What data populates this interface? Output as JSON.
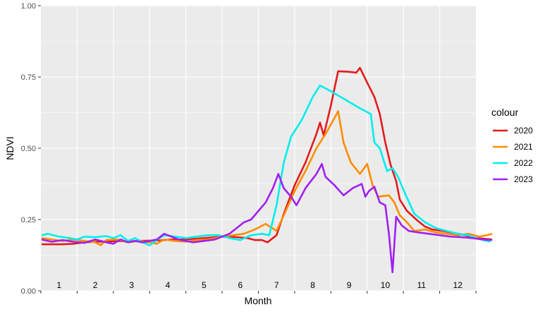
{
  "chart_data": {
    "type": "line",
    "xlabel": "Month",
    "ylabel": "NDVI",
    "ylim": [
      0,
      1
    ],
    "xlim": [
      0,
      12
    ],
    "y_ticks": [
      0,
      0.25,
      0.5,
      0.75,
      1
    ],
    "y_tick_labels": [
      "0.00",
      "0.25",
      "0.50",
      "0.75",
      "1.00"
    ],
    "month_labels": [
      "1",
      "2",
      "3",
      "4",
      "5",
      "6",
      "7",
      "8",
      "9",
      "10",
      "11",
      "12"
    ],
    "legend_title": "colour",
    "legend_position": "right",
    "grid": true,
    "background": "#ebebeb",
    "series": [
      {
        "name": "2020",
        "color": "#e41a1c",
        "points": [
          [
            0.02,
            0.163
          ],
          [
            0.3,
            0.163
          ],
          [
            0.6,
            0.163
          ],
          [
            0.9,
            0.165
          ],
          [
            1.2,
            0.17
          ],
          [
            1.5,
            0.172
          ],
          [
            1.8,
            0.172
          ],
          [
            2.1,
            0.175
          ],
          [
            2.4,
            0.173
          ],
          [
            2.7,
            0.175
          ],
          [
            3.0,
            0.176
          ],
          [
            3.3,
            0.177
          ],
          [
            3.6,
            0.18
          ],
          [
            3.9,
            0.18
          ],
          [
            4.2,
            0.182
          ],
          [
            4.5,
            0.185
          ],
          [
            4.8,
            0.188
          ],
          [
            5.1,
            0.19
          ],
          [
            5.4,
            0.188
          ],
          [
            5.7,
            0.185
          ],
          [
            5.9,
            0.178
          ],
          [
            6.1,
            0.178
          ],
          [
            6.25,
            0.17
          ],
          [
            6.5,
            0.195
          ],
          [
            6.7,
            0.27
          ],
          [
            7.0,
            0.37
          ],
          [
            7.3,
            0.45
          ],
          [
            7.6,
            0.55
          ],
          [
            7.7,
            0.59
          ],
          [
            7.8,
            0.545
          ],
          [
            8.0,
            0.65
          ],
          [
            8.2,
            0.77
          ],
          [
            8.5,
            0.768
          ],
          [
            8.7,
            0.765
          ],
          [
            8.8,
            0.782
          ],
          [
            9.0,
            0.73
          ],
          [
            9.2,
            0.68
          ],
          [
            9.35,
            0.62
          ],
          [
            9.5,
            0.52
          ],
          [
            9.65,
            0.44
          ],
          [
            9.8,
            0.385
          ],
          [
            9.9,
            0.32
          ],
          [
            10.1,
            0.28
          ],
          [
            10.4,
            0.245
          ],
          [
            10.6,
            0.225
          ],
          [
            10.8,
            0.215
          ],
          [
            11.1,
            0.21
          ],
          [
            11.3,
            0.205
          ],
          [
            11.6,
            0.198
          ],
          [
            11.8,
            0.192
          ],
          [
            12.0,
            0.185
          ],
          [
            12.3,
            0.182
          ],
          [
            12.45,
            0.18
          ]
        ]
      },
      {
        "name": "2021",
        "color": "#ff8c00",
        "points": [
          [
            0.02,
            0.185
          ],
          [
            0.3,
            0.18
          ],
          [
            0.6,
            0.175
          ],
          [
            0.9,
            0.18
          ],
          [
            1.2,
            0.175
          ],
          [
            1.5,
            0.17
          ],
          [
            1.65,
            0.16
          ],
          [
            1.8,
            0.178
          ],
          [
            2.1,
            0.18
          ],
          [
            2.4,
            0.17
          ],
          [
            2.7,
            0.175
          ],
          [
            3.0,
            0.17
          ],
          [
            3.2,
            0.165
          ],
          [
            3.4,
            0.18
          ],
          [
            3.7,
            0.175
          ],
          [
            4.0,
            0.172
          ],
          [
            4.3,
            0.178
          ],
          [
            4.6,
            0.18
          ],
          [
            5.0,
            0.19
          ],
          [
            5.3,
            0.195
          ],
          [
            5.6,
            0.2
          ],
          [
            5.9,
            0.215
          ],
          [
            6.2,
            0.235
          ],
          [
            6.5,
            0.21
          ],
          [
            6.7,
            0.265
          ],
          [
            7.0,
            0.35
          ],
          [
            7.3,
            0.42
          ],
          [
            7.6,
            0.5
          ],
          [
            7.9,
            0.56
          ],
          [
            8.2,
            0.63
          ],
          [
            8.35,
            0.52
          ],
          [
            8.55,
            0.45
          ],
          [
            8.8,
            0.41
          ],
          [
            9.0,
            0.445
          ],
          [
            9.15,
            0.37
          ],
          [
            9.3,
            0.33
          ],
          [
            9.6,
            0.335
          ],
          [
            9.75,
            0.31
          ],
          [
            9.9,
            0.265
          ],
          [
            10.1,
            0.24
          ],
          [
            10.3,
            0.21
          ],
          [
            10.6,
            0.215
          ],
          [
            10.9,
            0.205
          ],
          [
            11.2,
            0.2
          ],
          [
            11.5,
            0.195
          ],
          [
            11.8,
            0.2
          ],
          [
            12.1,
            0.19
          ],
          [
            12.3,
            0.195
          ],
          [
            12.45,
            0.2
          ]
        ]
      },
      {
        "name": "2022",
        "color": "#00eeee",
        "points": [
          [
            0.02,
            0.195
          ],
          [
            0.2,
            0.2
          ],
          [
            0.5,
            0.19
          ],
          [
            0.8,
            0.185
          ],
          [
            1.0,
            0.18
          ],
          [
            1.2,
            0.19
          ],
          [
            1.5,
            0.188
          ],
          [
            1.8,
            0.192
          ],
          [
            2.0,
            0.185
          ],
          [
            2.2,
            0.195
          ],
          [
            2.4,
            0.175
          ],
          [
            2.6,
            0.185
          ],
          [
            2.8,
            0.17
          ],
          [
            3.0,
            0.16
          ],
          [
            3.2,
            0.178
          ],
          [
            3.4,
            0.195
          ],
          [
            3.7,
            0.19
          ],
          [
            4.0,
            0.185
          ],
          [
            4.3,
            0.19
          ],
          [
            4.6,
            0.195
          ],
          [
            4.9,
            0.195
          ],
          [
            5.2,
            0.185
          ],
          [
            5.5,
            0.178
          ],
          [
            5.8,
            0.195
          ],
          [
            6.1,
            0.2
          ],
          [
            6.3,
            0.195
          ],
          [
            6.5,
            0.3
          ],
          [
            6.7,
            0.45
          ],
          [
            6.9,
            0.54
          ],
          [
            7.2,
            0.6
          ],
          [
            7.5,
            0.68
          ],
          [
            7.7,
            0.72
          ],
          [
            8.0,
            0.7
          ],
          [
            8.4,
            0.67
          ],
          [
            8.8,
            0.64
          ],
          [
            9.1,
            0.62
          ],
          [
            9.2,
            0.52
          ],
          [
            9.35,
            0.5
          ],
          [
            9.55,
            0.42
          ],
          [
            9.7,
            0.43
          ],
          [
            9.85,
            0.4
          ],
          [
            10.05,
            0.34
          ],
          [
            10.3,
            0.27
          ],
          [
            10.6,
            0.24
          ],
          [
            10.9,
            0.22
          ],
          [
            11.2,
            0.21
          ],
          [
            11.5,
            0.2
          ],
          [
            11.8,
            0.195
          ],
          [
            12.0,
            0.185
          ],
          [
            12.2,
            0.178
          ],
          [
            12.4,
            0.172
          ]
        ]
      },
      {
        "name": "2023",
        "color": "#a020f0",
        "points": [
          [
            0.02,
            0.18
          ],
          [
            0.3,
            0.172
          ],
          [
            0.6,
            0.178
          ],
          [
            0.9,
            0.172
          ],
          [
            1.2,
            0.168
          ],
          [
            1.5,
            0.18
          ],
          [
            1.8,
            0.17
          ],
          [
            2.0,
            0.165
          ],
          [
            2.2,
            0.18
          ],
          [
            2.4,
            0.17
          ],
          [
            2.6,
            0.175
          ],
          [
            2.8,
            0.17
          ],
          [
            3.0,
            0.175
          ],
          [
            3.2,
            0.18
          ],
          [
            3.4,
            0.2
          ],
          [
            3.6,
            0.19
          ],
          [
            3.8,
            0.18
          ],
          [
            4.0,
            0.175
          ],
          [
            4.2,
            0.17
          ],
          [
            4.5,
            0.175
          ],
          [
            4.8,
            0.18
          ],
          [
            5.0,
            0.19
          ],
          [
            5.2,
            0.2
          ],
          [
            5.4,
            0.22
          ],
          [
            5.6,
            0.24
          ],
          [
            5.8,
            0.25
          ],
          [
            6.0,
            0.28
          ],
          [
            6.2,
            0.31
          ],
          [
            6.4,
            0.36
          ],
          [
            6.55,
            0.41
          ],
          [
            6.7,
            0.36
          ],
          [
            6.9,
            0.33
          ],
          [
            7.05,
            0.3
          ],
          [
            7.3,
            0.36
          ],
          [
            7.6,
            0.41
          ],
          [
            7.75,
            0.445
          ],
          [
            7.85,
            0.4
          ],
          [
            8.1,
            0.37
          ],
          [
            8.35,
            0.335
          ],
          [
            8.6,
            0.36
          ],
          [
            8.85,
            0.375
          ],
          [
            8.95,
            0.33
          ],
          [
            9.05,
            0.35
          ],
          [
            9.2,
            0.365
          ],
          [
            9.35,
            0.31
          ],
          [
            9.5,
            0.3
          ],
          [
            9.6,
            0.2
          ],
          [
            9.7,
            0.065
          ],
          [
            9.8,
            0.26
          ],
          [
            9.95,
            0.23
          ],
          [
            10.15,
            0.21
          ],
          [
            10.4,
            0.205
          ],
          [
            10.7,
            0.2
          ],
          [
            11.0,
            0.195
          ],
          [
            11.3,
            0.19
          ],
          [
            11.6,
            0.188
          ],
          [
            11.9,
            0.185
          ],
          [
            12.2,
            0.18
          ],
          [
            12.45,
            0.178
          ]
        ]
      }
    ]
  }
}
